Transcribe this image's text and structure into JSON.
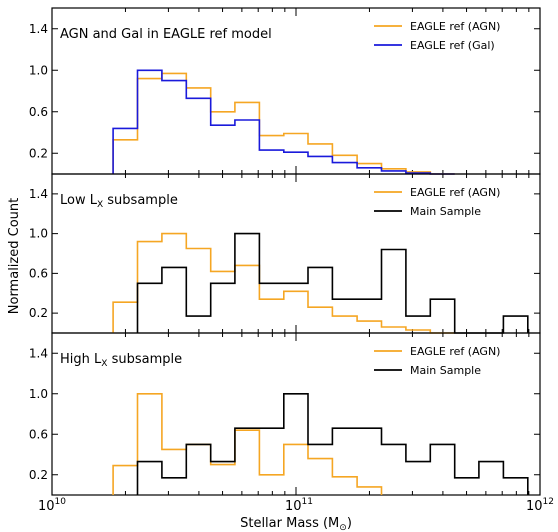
{
  "figure": {
    "ylabel": "Normalized Count",
    "xlabel_main": "Stellar Mass (M",
    "xlabel_sub": "⊙",
    "xlabel_close": ")",
    "xtick_labels": [
      {
        "base": "10",
        "exp": "10"
      },
      {
        "base": "10",
        "exp": "11"
      },
      {
        "base": "10",
        "exp": "12"
      }
    ]
  },
  "chart_data": [
    {
      "type": "line",
      "step": true,
      "title": "AGN and Gal in EAGLE ref model",
      "title_subscript": "",
      "title_suffix": "",
      "xscale": "log",
      "xlim": [
        10000000000.0,
        1000000000000.0
      ],
      "ylim": [
        0,
        1.6
      ],
      "yticks": [
        0.2,
        0.6,
        1.0,
        1.4
      ],
      "ytick_labels": [
        "0.2",
        "0.6",
        "1.0",
        "1.4"
      ],
      "legend": "top-right",
      "grid": false,
      "bin_edges": [
        17800000000.0,
        22400000000.0,
        28200000000.0,
        35500000000.0,
        44700000000.0,
        56200000000.0,
        70800000000.0,
        89100000000.0,
        112000000000.0,
        141000000000.0,
        178000000000.0,
        224000000000.0,
        282000000000.0,
        355000000000.0,
        447000000000.0
      ],
      "series": [
        {
          "name": "EAGLE ref (AGN)",
          "color": "#f5a623",
          "values": [
            0.33,
            0.92,
            0.97,
            0.83,
            0.6,
            0.69,
            0.37,
            0.39,
            0.29,
            0.18,
            0.1,
            0.05,
            0.02,
            0.0
          ]
        },
        {
          "name": "EAGLE ref (Gal)",
          "color": "#1a1adb",
          "values": [
            0.44,
            1.0,
            0.9,
            0.73,
            0.47,
            0.52,
            0.23,
            0.21,
            0.17,
            0.11,
            0.06,
            0.03,
            0.01,
            0.0
          ]
        }
      ]
    },
    {
      "type": "line",
      "step": true,
      "title": "Low L",
      "title_subscript": "X",
      "title_suffix": " subsample",
      "xscale": "log",
      "xlim": [
        10000000000.0,
        1000000000000.0
      ],
      "ylim": [
        0,
        1.6
      ],
      "yticks": [
        0.2,
        0.6,
        1.0,
        1.4
      ],
      "ytick_labels": [
        "0.2",
        "0.6",
        "1.0",
        "1.4"
      ],
      "legend": "top-right",
      "grid": false,
      "series": [
        {
          "name": "EAGLE ref (AGN)",
          "color": "#f5a623",
          "bin_edges": [
            17800000000.0,
            22400000000.0,
            28200000000.0,
            35500000000.0,
            44700000000.0,
            56200000000.0,
            70800000000.0,
            89100000000.0,
            112000000000.0,
            141000000000.0,
            178000000000.0,
            224000000000.0,
            282000000000.0,
            355000000000.0,
            447000000000.0
          ],
          "values": [
            0.31,
            0.92,
            1.0,
            0.85,
            0.62,
            0.68,
            0.34,
            0.42,
            0.26,
            0.17,
            0.12,
            0.06,
            0.03,
            0.0
          ]
        },
        {
          "name": "Main Sample",
          "color": "#000000",
          "bin_edges": [
            22400000000.0,
            28200000000.0,
            35500000000.0,
            44700000000.0,
            56200000000.0,
            70800000000.0,
            89100000000.0,
            112000000000.0,
            141000000000.0,
            178000000000.0,
            224000000000.0,
            282000000000.0,
            355000000000.0,
            447000000000.0,
            562000000000.0,
            708000000000.0,
            891000000000.0
          ],
          "values": [
            0.5,
            0.66,
            0.17,
            0.5,
            1.0,
            0.5,
            0.5,
            0.66,
            0.34,
            0.34,
            0.84,
            0.17,
            0.34,
            0.0,
            0.0,
            0.17
          ]
        }
      ]
    },
    {
      "type": "line",
      "step": true,
      "title": "High L",
      "title_subscript": "X",
      "title_suffix": " subsample",
      "xscale": "log",
      "xlim": [
        10000000000.0,
        1000000000000.0
      ],
      "ylim": [
        0,
        1.6
      ],
      "yticks": [
        0.2,
        0.6,
        1.0,
        1.4
      ],
      "ytick_labels": [
        "0.2",
        "0.6",
        "1.0",
        "1.4"
      ],
      "legend": "top-right",
      "grid": false,
      "series": [
        {
          "name": "EAGLE ref (AGN)",
          "color": "#f5a623",
          "bin_edges": [
            17800000000.0,
            22400000000.0,
            28200000000.0,
            35500000000.0,
            44700000000.0,
            56200000000.0,
            70800000000.0,
            89100000000.0,
            112000000000.0,
            141000000000.0,
            178000000000.0,
            224000000000.0
          ],
          "values": [
            0.29,
            1.0,
            0.45,
            0.5,
            0.3,
            0.64,
            0.2,
            0.5,
            0.36,
            0.18,
            0.08
          ]
        },
        {
          "name": "Main Sample",
          "color": "#000000",
          "bin_edges": [
            22400000000.0,
            28200000000.0,
            35500000000.0,
            44700000000.0,
            56200000000.0,
            70800000000.0,
            89100000000.0,
            112000000000.0,
            141000000000.0,
            178000000000.0,
            224000000000.0,
            282000000000.0,
            355000000000.0,
            447000000000.0,
            562000000000.0,
            708000000000.0,
            891000000000.0
          ],
          "values": [
            0.33,
            0.17,
            0.5,
            0.33,
            0.66,
            0.66,
            1.0,
            0.5,
            0.66,
            0.66,
            0.5,
            0.33,
            0.5,
            0.17,
            0.33,
            0.17
          ]
        }
      ]
    }
  ]
}
